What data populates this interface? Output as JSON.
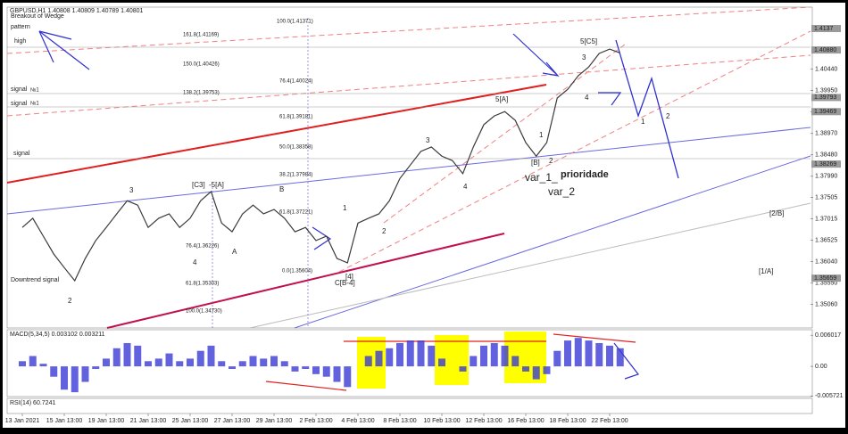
{
  "chart_data": [
    {
      "type": "line",
      "title": "GBPUSD,H1 1.40808 1.40809 1.40789 1.40801",
      "color": "#3a3a3a",
      "categories": [
        "13 Jan 2021",
        null,
        null,
        null,
        "15 Jan 13:00",
        null,
        null,
        null,
        "19 Jan 13:00",
        null,
        null,
        null,
        "21 Jan 13:00",
        null,
        null,
        null,
        "25 Jan 13:00",
        null,
        null,
        null,
        "27 Jan 13:00",
        null,
        null,
        null,
        "29 Jan 13:00",
        null,
        null,
        null,
        "2 Feb 13:00",
        null,
        null,
        null,
        "4 Feb 13:00",
        null,
        null,
        null,
        "8 Feb 13:00",
        null,
        null,
        null,
        "10 Feb 13:00",
        null,
        null,
        null,
        "12 Feb 13:00",
        null,
        null,
        null,
        "16 Feb 13:00",
        null,
        null,
        null,
        "18 Feb 13:00",
        null,
        null,
        null,
        "22 Feb 13:00",
        null
      ],
      "values": [
        1.3682,
        1.3703,
        1.3662,
        1.3621,
        1.359,
        1.356,
        1.3611,
        1.3652,
        1.3682,
        1.3713,
        1.3743,
        1.3733,
        1.3682,
        1.3703,
        1.3713,
        1.3682,
        1.3703,
        1.3743,
        1.3764,
        1.3692,
        1.3672,
        1.3713,
        1.3733,
        1.3713,
        1.3723,
        1.3703,
        1.3672,
        1.3682,
        1.3652,
        1.3662,
        1.3611,
        1.3601,
        1.3692,
        1.3703,
        1.3713,
        1.3743,
        1.3794,
        1.3825,
        1.3856,
        1.3866,
        1.3845,
        1.3835,
        1.3805,
        1.3866,
        1.3917,
        1.3937,
        1.3947,
        1.3927,
        1.3876,
        1.3845,
        1.3876,
        1.3978,
        1.3998,
        1.4029,
        1.4049,
        1.408,
        1.409,
        1.4081
      ],
      "ylim": [
        1.3452,
        1.4186
      ],
      "yticks": [
        {
          "value": 1.4044,
          "label": "1.40440"
        },
        {
          "value": 1.3995,
          "label": "1.39950"
        },
        {
          "value": 1.3946,
          "label": "1.39460"
        },
        {
          "value": 1.3897,
          "label": "1.38970"
        },
        {
          "value": 1.3848,
          "label": "1.38480"
        },
        {
          "value": 1.3799,
          "label": "1.37990"
        },
        1.37505,
        1.37015,
        1.36525,
        {
          "value": 1.3604,
          "label": "1.36040"
        },
        {
          "value": 1.3555,
          "label": "1.35550"
        },
        {
          "value": 1.3506,
          "label": "1.35060"
        }
      ],
      "levels": [
        1.4137,
        {
          "value": 1.4088,
          "label": "1.40880"
        },
        1.39793,
        1.39469,
        1.38269,
        1.35659
      ],
      "annotations": [
        "Breakout of Wedge",
        "pattern",
        "high",
        "signal",
        "№1",
        "signal",
        "№1",
        "signal",
        "Downtrend signal",
        "2",
        "3",
        "4",
        "[C3]",
        "-5[A]",
        "A",
        "B",
        "1",
        "2",
        "C[B-4]",
        "[4]",
        "3",
        "4",
        "5[A]",
        "1",
        "[B]",
        "2",
        "3",
        "4",
        "5[C5]",
        "var_1_",
        "prioridade",
        "var_2",
        "1",
        "2",
        "[2/B]",
        "[1/A]",
        "100.0(1.41371)",
        "161.8(1.41169)",
        "150.0(1.40426)",
        "76.4(1.40024)",
        "138.2(1.39753)",
        "61.8(1.39181)",
        "50.0(1.38358)",
        "38.2(1.37984)",
        "61.8(1.37221)",
        "76.4(1.36226)",
        "0.0(1.35604)",
        "61.8(1.35303)",
        "100.0(1.34730)"
      ]
    },
    {
      "type": "bar",
      "title": "MACD(5,34,5) 0.003102 0.003211",
      "color": "#3b3bd6",
      "values": [
        0.001,
        0.002,
        0.0005,
        -0.002,
        -0.0045,
        -0.005,
        -0.003,
        -0.0005,
        0.0015,
        0.0035,
        0.0045,
        0.004,
        0.001,
        0.0015,
        0.0025,
        0.001,
        0.0015,
        0.003,
        0.004,
        0.001,
        -0.0005,
        0.001,
        0.002,
        0.0015,
        0.002,
        0.001,
        -0.001,
        -0.0005,
        -0.0015,
        -0.002,
        -0.003,
        -0.004,
        0,
        0.002,
        0.003,
        0.0035,
        0.0045,
        0.005,
        0.005,
        0.004,
        0.0015,
        0,
        -0.001,
        0.002,
        0.004,
        0.0045,
        0.004,
        0.002,
        -0.001,
        -0.0025,
        -0.0015,
        0.003,
        0.005,
        0.0055,
        0.005,
        0.0045,
        0.004,
        0.0035
      ],
      "ylim": [
        -0.00584,
        0.00708
      ],
      "yticks": [
        0.006017,
        {
          "value": 0,
          "label": "0.00"
        },
        -0.005721
      ]
    },
    {
      "type": "line",
      "title": "RSI(14) 60.7241"
    }
  ]
}
